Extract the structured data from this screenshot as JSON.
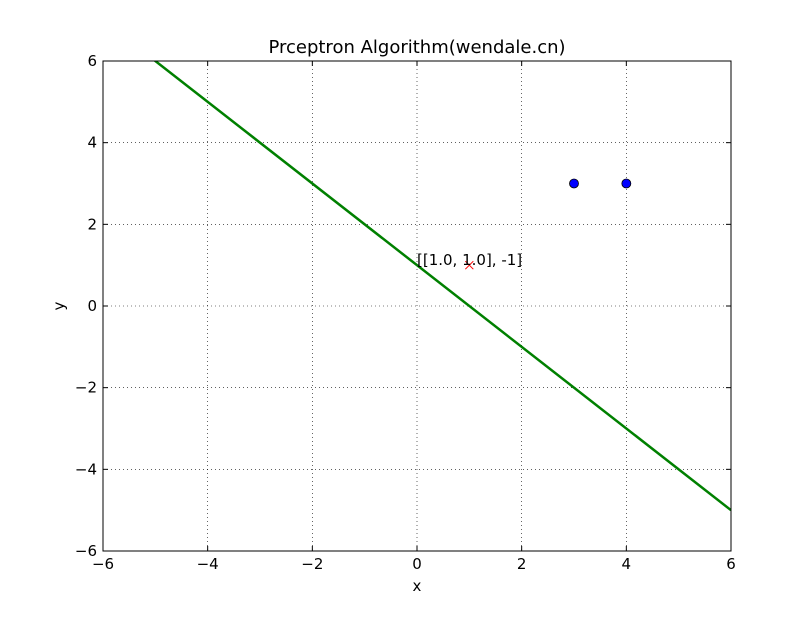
{
  "chart_data": {
    "type": "scatter",
    "title": "Prceptron Algorithm(wendale.cn)",
    "xlabel": "x",
    "ylabel": "y",
    "xlim": [
      -6,
      6
    ],
    "ylim": [
      -6,
      6
    ],
    "grid": true,
    "xticks": [
      -6,
      -4,
      -2,
      0,
      2,
      4,
      6
    ],
    "yticks": [
      -6,
      -4,
      -2,
      0,
      2,
      4,
      6
    ],
    "xtick_labels": [
      "−6",
      "−4",
      "−2",
      "0",
      "2",
      "4",
      "6"
    ],
    "ytick_labels": [
      "−6",
      "−4",
      "−2",
      "0",
      "2",
      "4",
      "6"
    ],
    "series": [
      {
        "kind": "line",
        "color": "#008000",
        "x": [
          -6,
          6
        ],
        "y": [
          7,
          -5
        ]
      },
      {
        "kind": "points",
        "marker": "circle",
        "color": "#0000ff",
        "x": [
          3,
          4
        ],
        "y": [
          3,
          3
        ]
      },
      {
        "kind": "points",
        "marker": "cross",
        "color": "#ff0000",
        "x": [
          1
        ],
        "y": [
          1
        ]
      }
    ],
    "annotation": {
      "text": "[[1.0, 1.0], -1]",
      "x": 0,
      "y": 1
    }
  }
}
